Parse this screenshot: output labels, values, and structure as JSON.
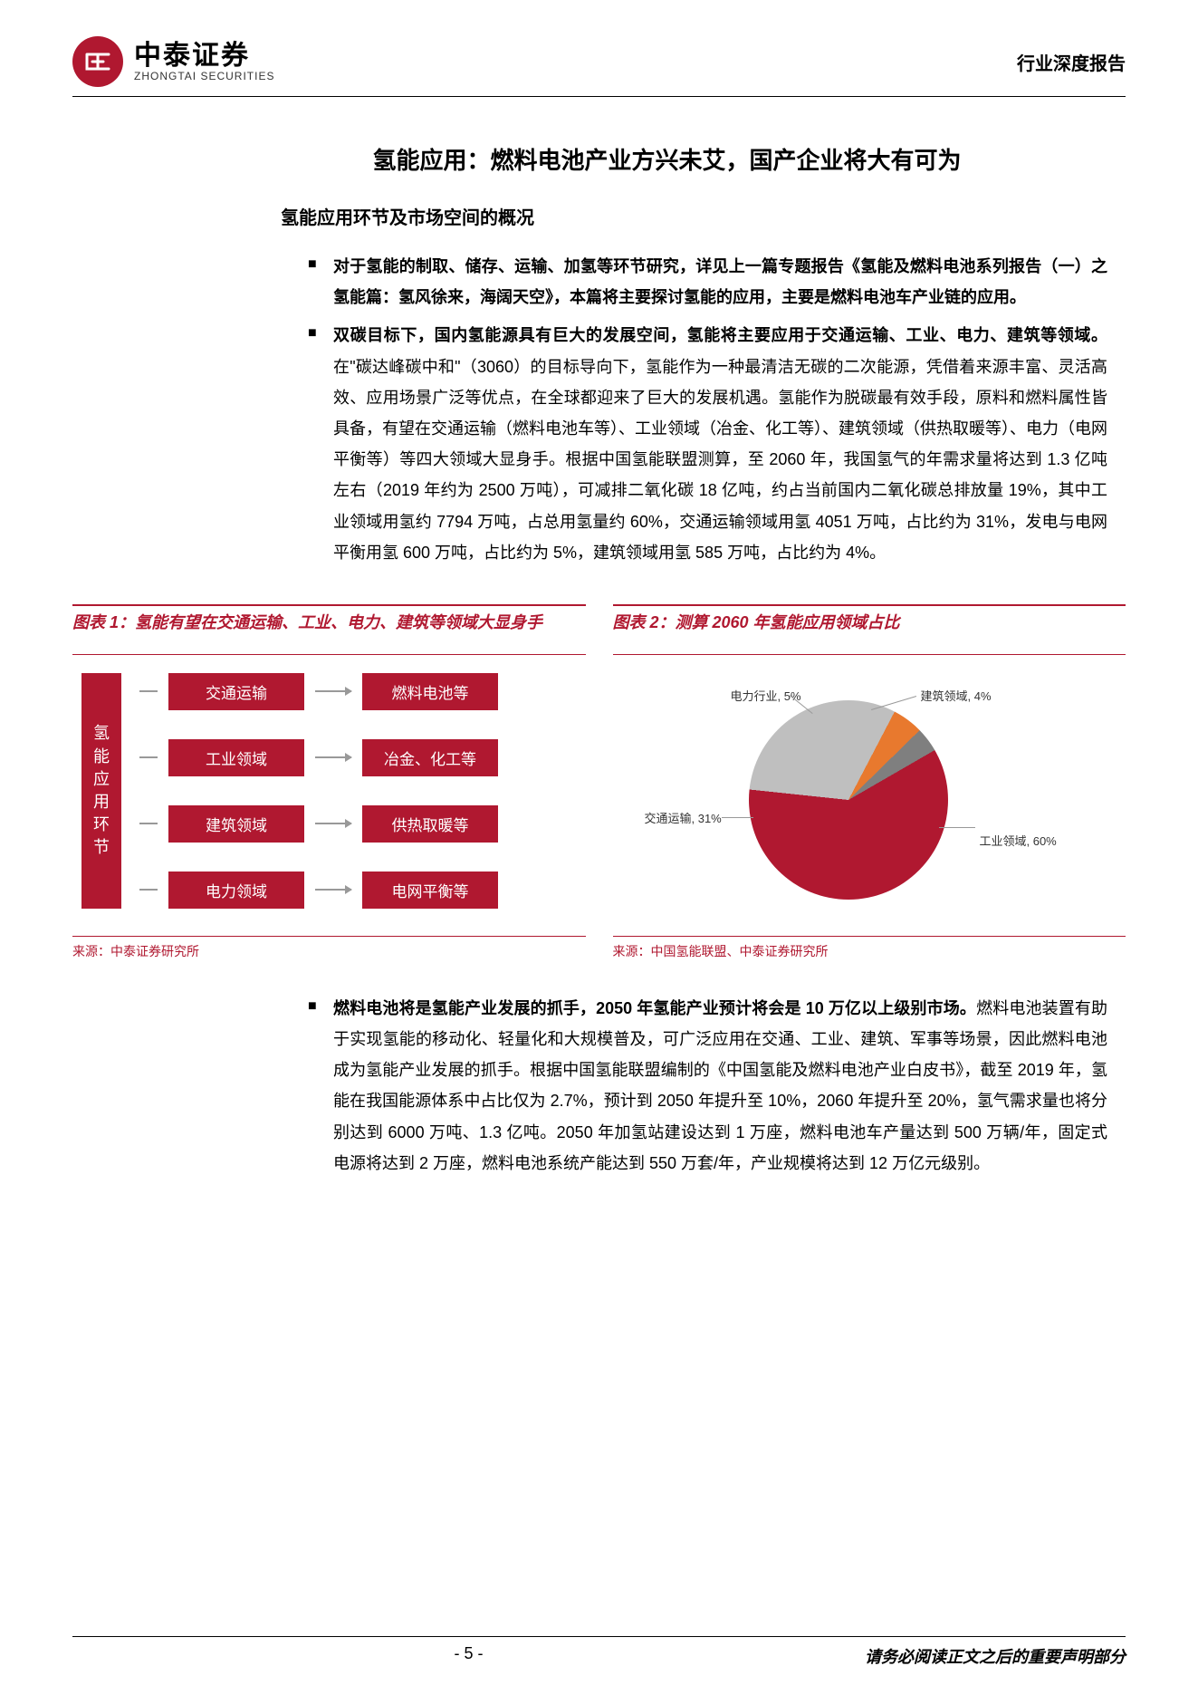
{
  "header": {
    "logo_cn": "中泰证券",
    "logo_en": "ZHONGTAI SECURITIES",
    "right": "行业深度报告"
  },
  "title": "氢能应用：燃料电池产业方兴未艾，国产企业将大有可为",
  "subtitle": "氢能应用环节及市场空间的概况",
  "bullets": [
    {
      "bold": "对于氢能的制取、储存、运输、加氢等环节研究，详见上一篇专题报告《氢能及燃料电池系列报告（一）之氢能篇：氢风徐来，海阔天空》，本篇将主要探讨氢能的应用，主要是燃料电池车产业链的应用。"
    },
    {
      "bold": "双碳目标下，国内氢能源具有巨大的发展空间，氢能将主要应用于交通运输、工业、电力、建筑等领域。",
      "rest": "在\"碳达峰碳中和\"（3060）的目标导向下，氢能作为一种最清洁无碳的二次能源，凭借着来源丰富、灵活高效、应用场景广泛等优点，在全球都迎来了巨大的发展机遇。氢能作为脱碳最有效手段，原料和燃料属性皆具备，有望在交通运输（燃料电池车等）、工业领域（冶金、化工等）、建筑领域（供热取暖等）、电力（电网平衡等）等四大领域大显身手。根据中国氢能联盟测算，至 2060 年，我国氢气的年需求量将达到 1.3 亿吨左右（2019 年约为 2500 万吨），可减排二氧化碳 18 亿吨，约占当前国内二氧化碳总排放量 19%，其中工业领域用氢约 7794 万吨，占总用氢量约 60%，交通运输领域用氢 4051 万吨，占比约为 31%，发电与电网平衡用氢 600 万吨，占比约为 5%，建筑领域用氢 585 万吨，占比约为 4%。"
    }
  ],
  "figure1": {
    "title": "图表 1：氢能有望在交通运输、工业、电力、建筑等领域大显身手",
    "left_label": "氢能应用环节",
    "rows": [
      {
        "l": "交通运输",
        "r": "燃料电池等"
      },
      {
        "l": "工业领域",
        "r": "冶金、化工等"
      },
      {
        "l": "建筑领域",
        "r": "供热取暖等"
      },
      {
        "l": "电力领域",
        "r": "电网平衡等"
      }
    ],
    "source": "来源：中泰证券研究所",
    "colors": {
      "box": "#b01830",
      "text": "#ffffff",
      "arrow": "#999999"
    }
  },
  "figure2": {
    "title": "图表 2：测算 2060 年氢能应用领域占比",
    "slices": [
      {
        "label": "工业领域",
        "value": 60,
        "color": "#b01830",
        "disp": "工业领域, 60%"
      },
      {
        "label": "交通运输",
        "value": 31,
        "color": "#bfbfbf",
        "disp": "交通运输, 31%"
      },
      {
        "label": "电力行业",
        "value": 5,
        "color": "#e8792e",
        "disp": "电力行业, 5%"
      },
      {
        "label": "建筑领域",
        "value": 4,
        "color": "#7f7f7f",
        "disp": "建筑领域, 4%"
      }
    ],
    "source": "来源：中国氢能联盟、中泰证券研究所"
  },
  "bullets2": [
    {
      "bold": "燃料电池将是氢能产业发展的抓手，2050 年氢能产业预计将会是 10 万亿以上级别市场。",
      "rest": "燃料电池装置有助于实现氢能的移动化、轻量化和大规模普及，可广泛应用在交通、工业、建筑、军事等场景，因此燃料电池成为氢能产业发展的抓手。根据中国氢能联盟编制的《中国氢能及燃料电池产业白皮书》，截至 2019 年，氢能在我国能源体系中占比仅为 2.7%，预计到 2050 年提升至 10%，2060 年提升至 20%，氢气需求量也将分别达到 6000 万吨、1.3 亿吨。2050 年加氢站建设达到 1 万座，燃料电池车产量达到 500 万辆/年，固定式电源将达到 2 万座，燃料电池系统产能达到 550 万套/年，产业规模将达到 12 万亿元级别。"
    }
  ],
  "footer": {
    "page": "- 5 -",
    "right": "请务必阅读正文之后的重要声明部分"
  }
}
